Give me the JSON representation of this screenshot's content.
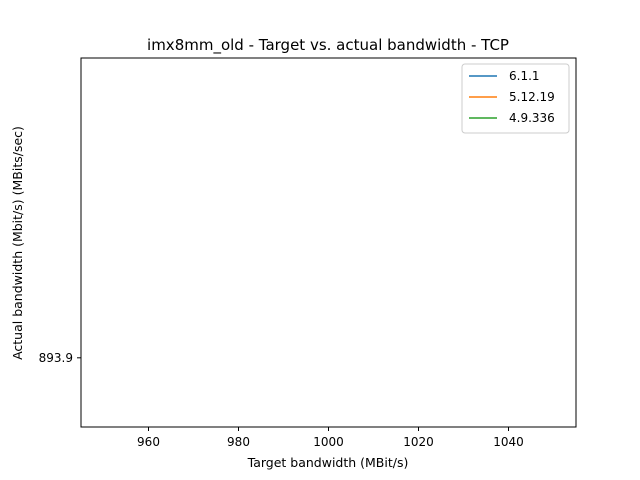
{
  "chart_data": {
    "type": "line",
    "title": "imx8mm_old - Target vs. actual bandwidth - TCP",
    "xlabel": "Target bandwidth  (MBit/s)",
    "ylabel": "Actual bandwidth (Mbit/s) (MBits/sec)",
    "xlim": [
      945,
      1055
    ],
    "xticks": [
      960,
      980,
      1000,
      1020,
      1040
    ],
    "xtick_labels": [
      "960",
      "980",
      "1000",
      "1020",
      "1040"
    ],
    "ylim": [
      893.0,
      897.8
    ],
    "yticks": [
      893.9
    ],
    "ytick_labels": [
      "893.9"
    ],
    "grid": false,
    "legend_position": "top-right",
    "series": [
      {
        "name": "6.1.1",
        "color": "#1f77b4",
        "x": [],
        "y": []
      },
      {
        "name": "5.12.19",
        "color": "#ff7f0e",
        "x": [],
        "y": []
      },
      {
        "name": "4.9.336",
        "color": "#2ca02c",
        "x": [],
        "y": []
      }
    ]
  }
}
